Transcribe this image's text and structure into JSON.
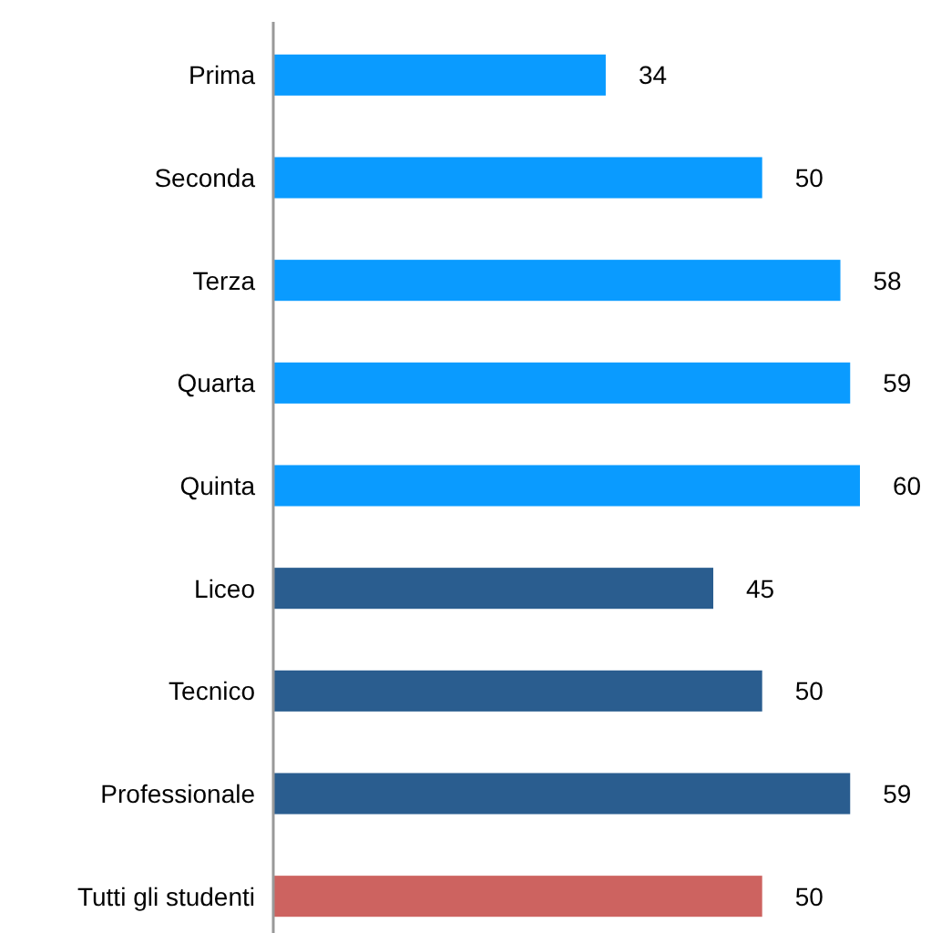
{
  "chart_data": {
    "type": "bar",
    "orientation": "horizontal",
    "categories": [
      "Prima",
      "Seconda",
      "Terza",
      "Quarta",
      "Quinta",
      "Liceo",
      "Tecnico",
      "Professionale",
      "Tutti gli studenti"
    ],
    "values": [
      34,
      50,
      58,
      59,
      60,
      45,
      50,
      59,
      50
    ],
    "colors": [
      "#0a9bff",
      "#0a9bff",
      "#0a9bff",
      "#0a9bff",
      "#0a9bff",
      "#2a5d8f",
      "#2a5d8f",
      "#2a5d8f",
      "#cd6360"
    ],
    "data_labels": true
  }
}
